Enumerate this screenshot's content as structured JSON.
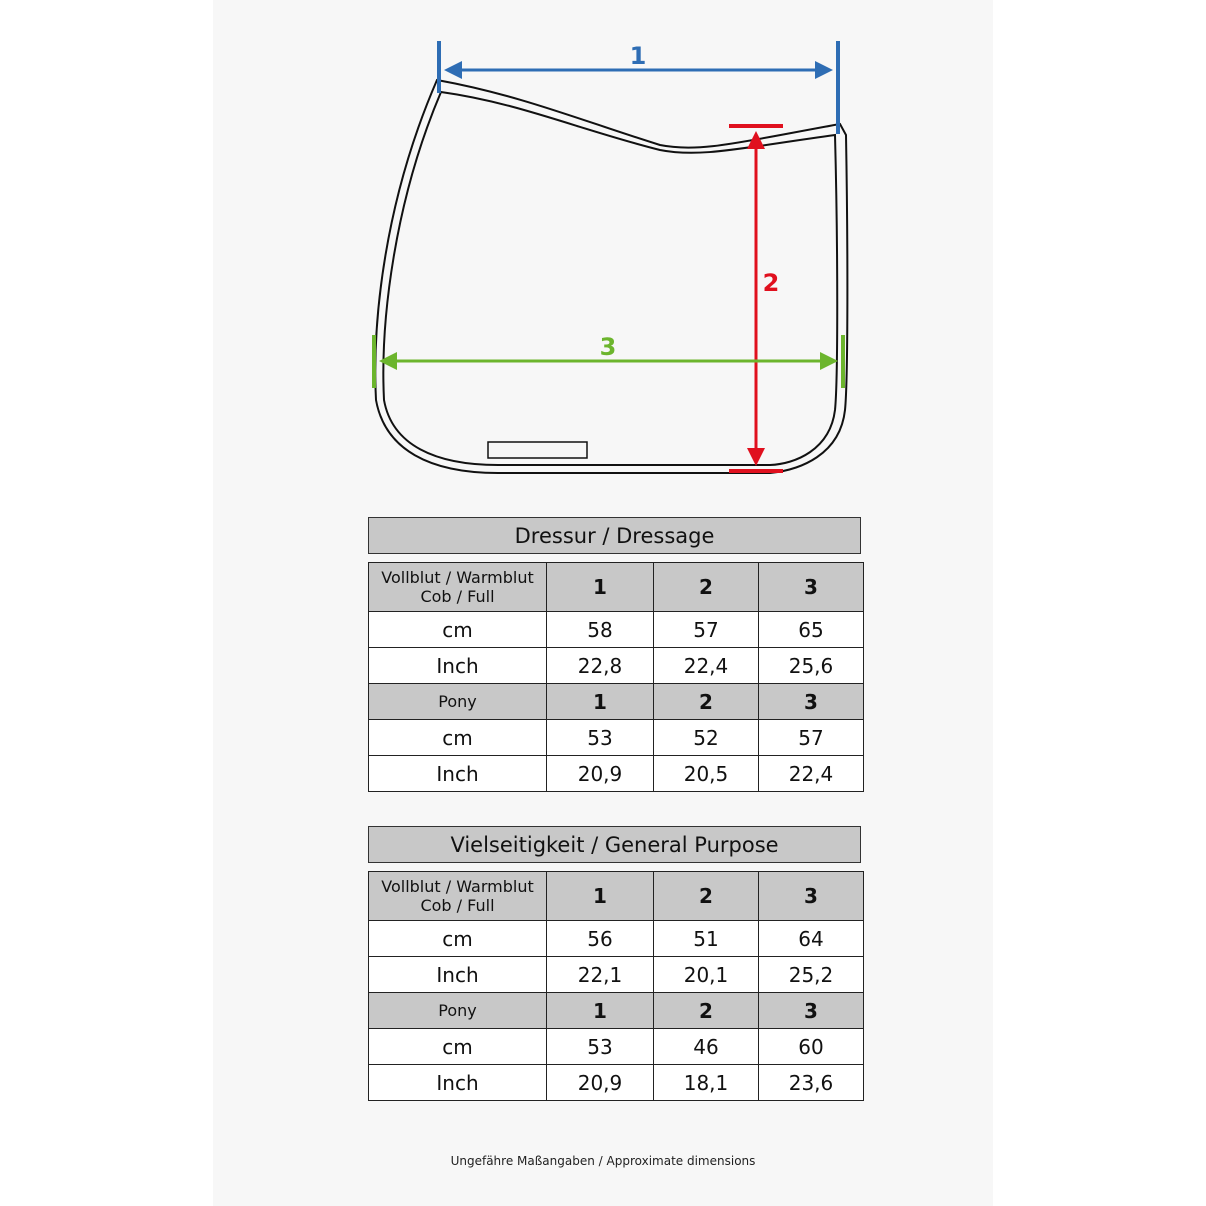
{
  "diagram": {
    "label_1": "1",
    "label_2": "2",
    "label_3": "3"
  },
  "colors": {
    "dim1": "#2e6db4",
    "dim2": "#e0101e",
    "dim3": "#6cb52d",
    "header_bg": "#c8c8c8"
  },
  "tables": [
    {
      "title": "Dressur / Dressage",
      "sections": [
        {
          "label_lines": [
            "Vollblut / Warmblut",
            "Cob / Full"
          ],
          "cm": [
            "58",
            "57",
            "65"
          ],
          "inch": [
            "22,8",
            "22,4",
            "25,6"
          ]
        },
        {
          "label_lines": [
            "Pony"
          ],
          "cm": [
            "53",
            "52",
            "57"
          ],
          "inch": [
            "20,9",
            "20,5",
            "22,4"
          ]
        }
      ]
    },
    {
      "title": "Vielseitigkeit / General Purpose",
      "sections": [
        {
          "label_lines": [
            "Vollblut / Warmblut",
            "Cob / Full"
          ],
          "cm": [
            "56",
            "51",
            "64"
          ],
          "inch": [
            "22,1",
            "20,1",
            "25,2"
          ]
        },
        {
          "label_lines": [
            "Pony"
          ],
          "cm": [
            "53",
            "46",
            "60"
          ],
          "inch": [
            "20,9",
            "18,1",
            "23,6"
          ]
        }
      ]
    }
  ],
  "column_headers": [
    "1",
    "2",
    "3"
  ],
  "unit_cm": "cm",
  "unit_inch": "Inch",
  "footnote": "Ungefähre Maßangaben / Approximate dimensions"
}
